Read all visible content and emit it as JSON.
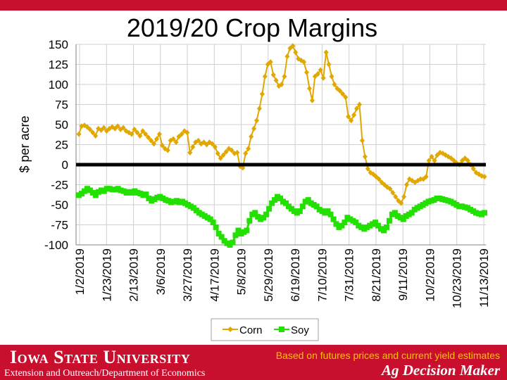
{
  "chart_data": {
    "type": "line",
    "title": "2019/20 Crop Margins",
    "ylabel": "$ per acre",
    "xlabel": "",
    "ylim": [
      -100,
      150
    ],
    "yticks": [
      "150",
      "125",
      "100",
      "75",
      "50",
      "25",
      "0",
      "-25",
      "-50",
      "-75",
      "-100"
    ],
    "xticks": [
      "1/2/2019",
      "1/23/2019",
      "2/13/2019",
      "3/6/2019",
      "3/27/2019",
      "4/17/2019",
      "5/8/2019",
      "5/29/2019",
      "6/19/2019",
      "7/10/2019",
      "7/31/2019",
      "8/21/2019",
      "9/11/2019",
      "10/2/2019",
      "10/23/2019",
      "11/13/2019"
    ],
    "grid": true,
    "legend": "bottom",
    "zero_line": true,
    "series": [
      {
        "name": "Corn",
        "color": "#e0a800",
        "marker": "diamond",
        "values": [
          38,
          48,
          49,
          47,
          44,
          40,
          36,
          45,
          43,
          46,
          42,
          45,
          47,
          45,
          48,
          44,
          46,
          42,
          40,
          38,
          44,
          40,
          36,
          42,
          38,
          34,
          30,
          26,
          32,
          38,
          24,
          20,
          18,
          30,
          32,
          28,
          35,
          38,
          42,
          40,
          15,
          22,
          28,
          30,
          26,
          28,
          25,
          28,
          26,
          22,
          14,
          8,
          12,
          16,
          20,
          18,
          14,
          15,
          -2,
          -4,
          14,
          20,
          35,
          45,
          55,
          70,
          88,
          110,
          125,
          128,
          112,
          105,
          98,
          100,
          110,
          135,
          145,
          148,
          140,
          132,
          130,
          128,
          115,
          95,
          80,
          110,
          113,
          118,
          108,
          140,
          125,
          110,
          100,
          95,
          92,
          88,
          84,
          60,
          55,
          62,
          70,
          75,
          30,
          10,
          -5,
          -10,
          -12,
          -15,
          -18,
          -22,
          -25,
          -28,
          -30,
          -35,
          -40,
          -45,
          -48,
          -40,
          -25,
          -18,
          -20,
          -22,
          -20,
          -18,
          -18,
          -15,
          5,
          10,
          5,
          12,
          15,
          14,
          12,
          10,
          8,
          5,
          2,
          0,
          5,
          8,
          5,
          0,
          -5,
          -10,
          -12,
          -14,
          -15
        ]
      },
      {
        "name": "Soy",
        "color": "#22e000",
        "marker": "square",
        "values": [
          -38,
          -36,
          -33,
          -30,
          -32,
          -35,
          -38,
          -34,
          -32,
          -33,
          -30,
          -30,
          -31,
          -31,
          -30,
          -32,
          -33,
          -35,
          -34,
          -35,
          -33,
          -35,
          -36,
          -38,
          -37,
          -42,
          -45,
          -43,
          -41,
          -40,
          -42,
          -44,
          -45,
          -47,
          -46,
          -45,
          -47,
          -46,
          -48,
          -50,
          -52,
          -54,
          -57,
          -60,
          -62,
          -64,
          -66,
          -68,
          -72,
          -78,
          -86,
          -90,
          -95,
          -98,
          -100,
          -97,
          -88,
          -82,
          -86,
          -84,
          -82,
          -70,
          -62,
          -60,
          -65,
          -68,
          -66,
          -62,
          -55,
          -48,
          -44,
          -40,
          -42,
          -46,
          -48,
          -52,
          -55,
          -58,
          -60,
          -58,
          -52,
          -46,
          -44,
          -48,
          -50,
          -52,
          -56,
          -58,
          -60,
          -58,
          -62,
          -68,
          -74,
          -78,
          -76,
          -72,
          -66,
          -68,
          -70,
          -72,
          -76,
          -78,
          -80,
          -78,
          -76,
          -74,
          -72,
          -76,
          -80,
          -82,
          -78,
          -70,
          -62,
          -60,
          -64,
          -66,
          -68,
          -64,
          -62,
          -60,
          -56,
          -54,
          -52,
          -50,
          -48,
          -46,
          -45,
          -44,
          -42,
          -42,
          -43,
          -44,
          -45,
          -46,
          -48,
          -50,
          -52,
          -52,
          -53,
          -54,
          -56,
          -58,
          -60,
          -61,
          -62,
          -60
        ]
      }
    ]
  },
  "footer": {
    "university": "Iowa State University",
    "extension": "Extension and Outreach/Department of Economics",
    "note": "Based on futures prices and current yield estimates",
    "brand": "Ag Decision Maker"
  },
  "colors": {
    "brand_red": "#c8102e",
    "note_yellow": "#f5c400"
  }
}
